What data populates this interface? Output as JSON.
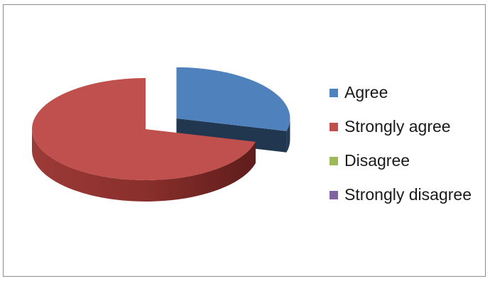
{
  "chart_data": {
    "type": "pie",
    "style": "3d-exploded",
    "title": "",
    "categories": [
      "Agree",
      "Strongly agree",
      "Disagree",
      "Strongly disagree"
    ],
    "values": [
      29,
      71,
      0,
      0
    ],
    "colors": [
      "#4f81bd",
      "#c0504d",
      "#9bbb59",
      "#8064a2"
    ],
    "legend_position": "right"
  }
}
